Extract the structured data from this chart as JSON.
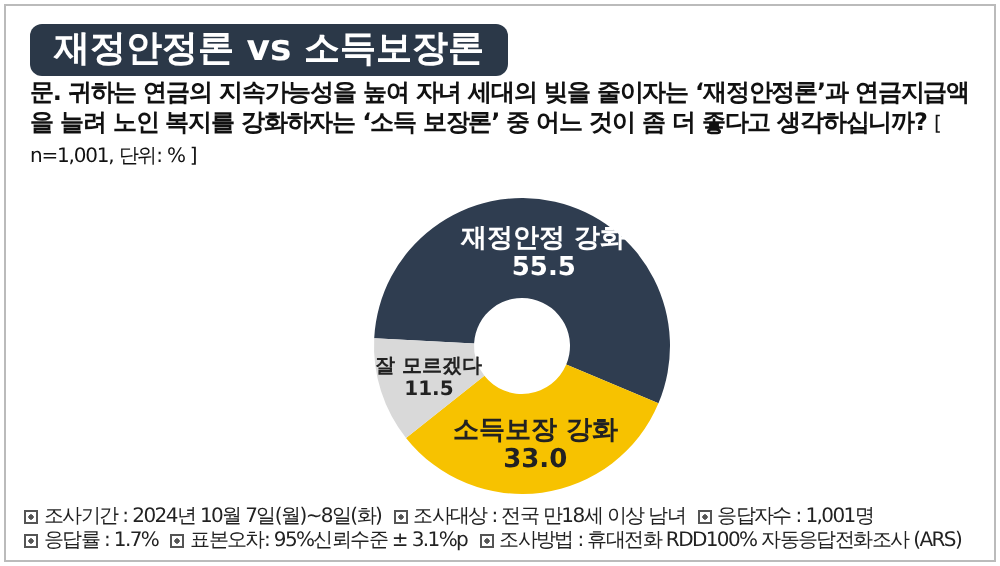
{
  "chart_data": {
    "type": "donut",
    "title": "재정안정론 vs 소득보장론",
    "subtitle": "문. 귀하는 연금의 지속가능성을 높여 자녀 세대의 빚을 줄이자는 ‘재정안정론’과 연금지급액을 늘려 노인 복지를 강화하자는 ‘소득 보장론’ 중 어느 것이 좀 더 좋다고 생각하십니까?",
    "categories": [
      "재정안정 강화",
      "소득보장 강화",
      "잘 모르겠다"
    ],
    "values": [
      55.5,
      33.0,
      11.5
    ],
    "value_labels": [
      "55.5",
      "33.0",
      "11.5"
    ],
    "colors": [
      "#2f3d50",
      "#f7c200",
      "#d9d9d9"
    ],
    "legend": false,
    "annotations": [
      "[ n=1,001, 단위: % ]",
      "조사기간 : 2024년 10월 7일(월)~8일(화)",
      "조사대상 : 전국 만18세 이상 남녀",
      "응답자수 : 1,001명",
      "응답률 : 1.7%",
      "표본오차: 95%신뢰수준 ± 3.1%p",
      "조사방법 : 휴대전화 RDD100% 자동응답전화조사 (ARS)"
    ]
  }
}
